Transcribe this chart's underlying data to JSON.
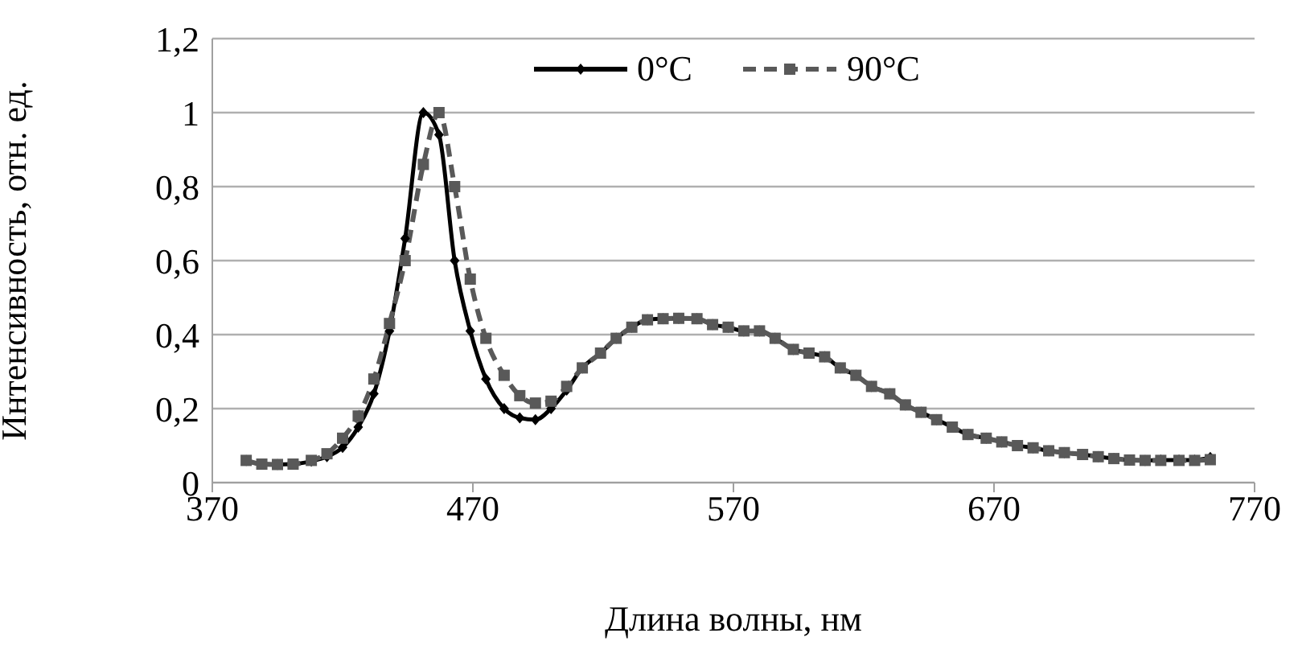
{
  "chart_data": {
    "type": "line",
    "xlabel": "Длина волны, нм",
    "ylabel": "Интенсивность, отн. ед.",
    "x": [
      383,
      389,
      395,
      401,
      408,
      414,
      420,
      426,
      432,
      438,
      444,
      451,
      457,
      463,
      469,
      475,
      482,
      488,
      494,
      500,
      506,
      512,
      519,
      525,
      531,
      537,
      543,
      549,
      556,
      562,
      568,
      574,
      580,
      586,
      593,
      599,
      605,
      611,
      617,
      623,
      630,
      636,
      642,
      648,
      654,
      660,
      667,
      673,
      679,
      685,
      691,
      697,
      704,
      710,
      716,
      722,
      728,
      734,
      741,
      747,
      753
    ],
    "series": [
      {
        "name": "0°C",
        "color": "#000000",
        "marker": "diamond",
        "line_style": "solid",
        "values": [
          0.06,
          0.05,
          0.049,
          0.05,
          0.058,
          0.07,
          0.095,
          0.15,
          0.24,
          0.41,
          0.66,
          1.0,
          0.94,
          0.6,
          0.41,
          0.28,
          0.2,
          0.175,
          0.17,
          0.2,
          0.25,
          0.31,
          0.35,
          0.39,
          0.42,
          0.44,
          0.443,
          0.444,
          0.443,
          0.427,
          0.42,
          0.41,
          0.41,
          0.39,
          0.36,
          0.35,
          0.34,
          0.31,
          0.29,
          0.26,
          0.24,
          0.21,
          0.19,
          0.17,
          0.15,
          0.13,
          0.12,
          0.11,
          0.1,
          0.094,
          0.086,
          0.081,
          0.076,
          0.07,
          0.065,
          0.061,
          0.06,
          0.061,
          0.061,
          0.061,
          0.068
        ]
      },
      {
        "name": "90°C",
        "color": "#595959",
        "marker": "square",
        "line_style": "dashed",
        "values": [
          0.06,
          0.05,
          0.049,
          0.05,
          0.06,
          0.078,
          0.12,
          0.18,
          0.28,
          0.43,
          0.6,
          0.86,
          1.0,
          0.8,
          0.55,
          0.39,
          0.29,
          0.235,
          0.215,
          0.22,
          0.26,
          0.31,
          0.35,
          0.39,
          0.42,
          0.44,
          0.443,
          0.444,
          0.443,
          0.427,
          0.42,
          0.41,
          0.41,
          0.39,
          0.36,
          0.35,
          0.34,
          0.31,
          0.29,
          0.26,
          0.24,
          0.21,
          0.19,
          0.17,
          0.15,
          0.13,
          0.12,
          0.11,
          0.1,
          0.094,
          0.086,
          0.081,
          0.076,
          0.07,
          0.065,
          0.061,
          0.06,
          0.06,
          0.06,
          0.06,
          0.062
        ]
      }
    ],
    "xlim": [
      370,
      770
    ],
    "xticks": [
      370,
      470,
      570,
      670,
      770
    ],
    "ylim": [
      0,
      1.2
    ],
    "yticks": [
      0,
      {
        "value": 0.2,
        "label": "0,2"
      },
      {
        "value": 0.4,
        "label": "0,4"
      },
      {
        "value": 0.6,
        "label": "0,6"
      },
      {
        "value": 0.8,
        "label": "0,8"
      },
      1,
      {
        "value": 1.2,
        "label": "1,2"
      }
    ],
    "grid": "y",
    "legend": "top right"
  }
}
